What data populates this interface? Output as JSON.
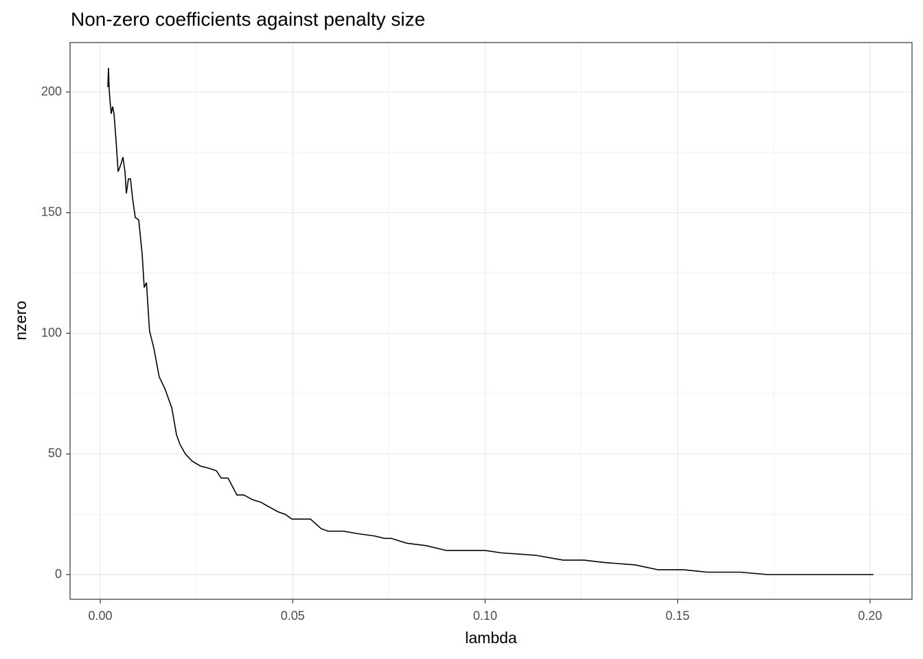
{
  "chart_data": {
    "type": "line",
    "title": "Non-zero coefficients against penalty size",
    "x_label": "lambda",
    "y_label": "nzero",
    "x": [
      0.00196,
      0.00214,
      0.00232,
      0.0025,
      0.00285,
      0.00321,
      0.00357,
      0.0041,
      0.00464,
      0.00535,
      0.00589,
      0.00642,
      0.00678,
      0.00731,
      0.00785,
      0.00839,
      0.0091,
      0.00999,
      0.01088,
      0.01142,
      0.012,
      0.0128,
      0.0139,
      0.0153,
      0.0168,
      0.0186,
      0.0198,
      0.0207,
      0.0221,
      0.0239,
      0.026,
      0.0284,
      0.0302,
      0.0314,
      0.0332,
      0.0355,
      0.0373,
      0.0396,
      0.0417,
      0.0439,
      0.0462,
      0.048,
      0.0498,
      0.0546,
      0.0574,
      0.0592,
      0.0632,
      0.0667,
      0.0712,
      0.0739,
      0.0756,
      0.0796,
      0.0846,
      0.0899,
      0.0999,
      0.1042,
      0.1131,
      0.1202,
      0.1256,
      0.131,
      0.139,
      0.1449,
      0.1515,
      0.1577,
      0.1663,
      0.1734,
      0.2009
    ],
    "series": [
      {
        "name": "nzero",
        "color": "#000000",
        "values": [
          202,
          210,
          201,
          197,
          191,
          194,
          191,
          180,
          167,
          170,
          173,
          167,
          158,
          164,
          164,
          156,
          148,
          147,
          133,
          119,
          121,
          101,
          94,
          82,
          77,
          69,
          58,
          54,
          50,
          47,
          45,
          44,
          43,
          40,
          40,
          33,
          33,
          31,
          30,
          28,
          26,
          25,
          23,
          23,
          19,
          18,
          18,
          17,
          16,
          15,
          15,
          13,
          12,
          10,
          10,
          9,
          8,
          6,
          6,
          5,
          4,
          2,
          2,
          1,
          1,
          0,
          0
        ]
      }
    ],
    "xlim": [
      -0.00785,
      0.2109
    ],
    "ylim": [
      -10.24,
      220.5
    ],
    "xticks": [
      {
        "value": 0,
        "label": "0.00"
      },
      {
        "value": 0.05,
        "label": "0.05"
      },
      {
        "value": 0.1,
        "label": "0.10"
      },
      {
        "value": 0.15,
        "label": "0.15"
      },
      {
        "value": 0.2,
        "label": "0.20"
      }
    ],
    "yticks": [
      0,
      50,
      100,
      150,
      200
    ],
    "grid": true
  }
}
